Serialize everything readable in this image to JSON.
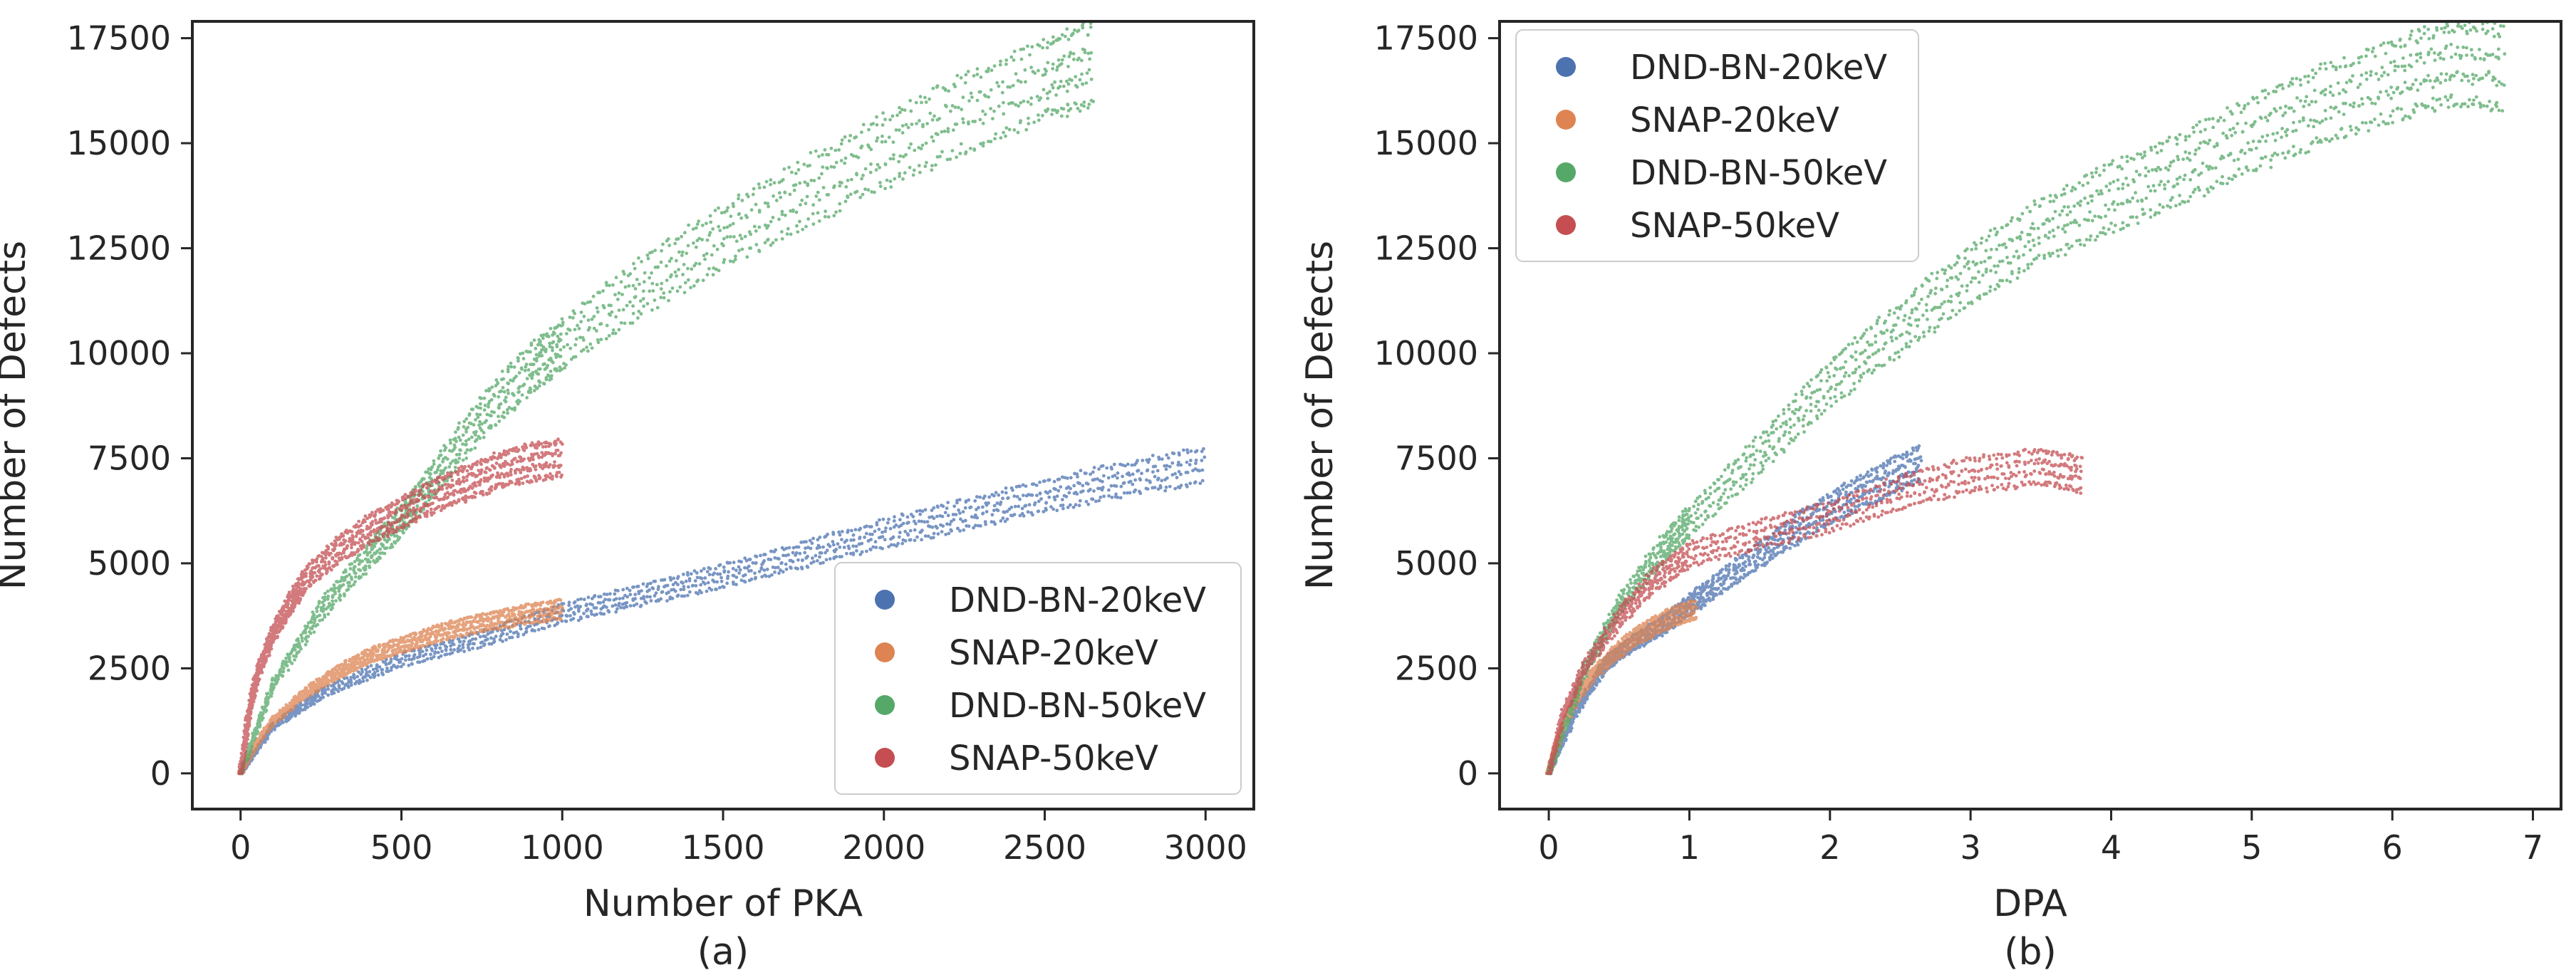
{
  "chart_data": [
    {
      "type": "scatter",
      "panel_label": "(a)",
      "xlabel": "Number of PKA",
      "ylabel": "Number of Defects",
      "xlim": [
        -150,
        3150
      ],
      "ylim": [
        -850,
        17900
      ],
      "xticks": [
        0,
        500,
        1000,
        1500,
        2000,
        2500,
        3000
      ],
      "yticks": [
        0,
        2500,
        5000,
        7500,
        10000,
        12500,
        15000,
        17500
      ],
      "legend_position": "lower-right",
      "legend": [
        "DND-BN-20keV",
        "SNAP-20keV",
        "DND-BN-50keV",
        "SNAP-50keV"
      ],
      "series": [
        {
          "name": "DND-BN-20keV",
          "color": "#4c72b0",
          "runs": 4,
          "points": [
            [
              0,
              0
            ],
            [
              100,
              1100
            ],
            [
              250,
              1900
            ],
            [
              500,
              2700
            ],
            [
              750,
              3200
            ],
            [
              1000,
              3800
            ],
            [
              1250,
              4250
            ],
            [
              1500,
              4700
            ],
            [
              1750,
              5200
            ],
            [
              2000,
              5700
            ],
            [
              2250,
              6150
            ],
            [
              2500,
              6600
            ],
            [
              2750,
              7000
            ],
            [
              3000,
              7350
            ]
          ]
        },
        {
          "name": "SNAP-20keV",
          "color": "#dd8452",
          "runs": 4,
          "points": [
            [
              0,
              0
            ],
            [
              50,
              700
            ],
            [
              100,
              1250
            ],
            [
              200,
              1900
            ],
            [
              300,
              2400
            ],
            [
              400,
              2800
            ],
            [
              500,
              3050
            ],
            [
              600,
              3300
            ],
            [
              700,
              3500
            ],
            [
              800,
              3650
            ],
            [
              900,
              3800
            ],
            [
              1000,
              3900
            ]
          ]
        },
        {
          "name": "DND-BN-50keV",
          "color": "#55a868",
          "runs": 4,
          "points": [
            [
              0,
              0
            ],
            [
              100,
              2100
            ],
            [
              250,
              3900
            ],
            [
              400,
              5200
            ],
            [
              500,
              6000
            ],
            [
              600,
              7000
            ],
            [
              750,
              8500
            ],
            [
              900,
              9600
            ],
            [
              1000,
              10200
            ],
            [
              1250,
              11600
            ],
            [
              1500,
              12800
            ],
            [
              1750,
              13800
            ],
            [
              2000,
              14800
            ],
            [
              2250,
              15700
            ],
            [
              2500,
              16500
            ],
            [
              2650,
              16900
            ]
          ]
        },
        {
          "name": "SNAP-50keV",
          "color": "#c44e52",
          "runs": 4,
          "points": [
            [
              0,
              0
            ],
            [
              25,
              1400
            ],
            [
              50,
              2300
            ],
            [
              100,
              3300
            ],
            [
              150,
              4000
            ],
            [
              200,
              4600
            ],
            [
              300,
              5300
            ],
            [
              400,
              5800
            ],
            [
              500,
              6200
            ],
            [
              600,
              6600
            ],
            [
              700,
              6900
            ],
            [
              800,
              7200
            ],
            [
              900,
              7400
            ],
            [
              1000,
              7500
            ]
          ]
        }
      ]
    },
    {
      "type": "scatter",
      "panel_label": "(b)",
      "xlabel": "DPA",
      "ylabel": "Number of Defects",
      "xlim": [
        -0.35,
        7.2
      ],
      "ylim": [
        -850,
        17900
      ],
      "xticks": [
        0,
        1,
        2,
        3,
        4,
        5,
        6,
        7
      ],
      "yticks": [
        0,
        2500,
        5000,
        7500,
        10000,
        12500,
        15000,
        17500
      ],
      "legend_position": "upper-left",
      "legend": [
        "DND-BN-20keV",
        "SNAP-20keV",
        "DND-BN-50keV",
        "SNAP-50keV"
      ],
      "series": [
        {
          "name": "DND-BN-20keV",
          "color": "#4c72b0",
          "runs": 4,
          "points": [
            [
              0,
              0
            ],
            [
              0.2,
              1500
            ],
            [
              0.4,
              2600
            ],
            [
              0.6,
              3100
            ],
            [
              0.8,
              3500
            ],
            [
              1.0,
              4000
            ],
            [
              1.2,
              4500
            ],
            [
              1.5,
              5200
            ],
            [
              1.8,
              5900
            ],
            [
              2.1,
              6500
            ],
            [
              2.4,
              7000
            ],
            [
              2.65,
              7400
            ]
          ]
        },
        {
          "name": "SNAP-20keV",
          "color": "#dd8452",
          "runs": 4,
          "points": [
            [
              0,
              0
            ],
            [
              0.05,
              600
            ],
            [
              0.1,
              1100
            ],
            [
              0.2,
              1800
            ],
            [
              0.3,
              2300
            ],
            [
              0.45,
              2800
            ],
            [
              0.6,
              3200
            ],
            [
              0.75,
              3500
            ],
            [
              0.9,
              3750
            ],
            [
              1.05,
              3900
            ]
          ]
        },
        {
          "name": "DND-BN-50keV",
          "color": "#55a868",
          "runs": 4,
          "points": [
            [
              0,
              0
            ],
            [
              0.25,
              2400
            ],
            [
              0.5,
              4000
            ],
            [
              0.8,
              5300
            ],
            [
              1.0,
              6000
            ],
            [
              1.5,
              7600
            ],
            [
              2.0,
              9300
            ],
            [
              2.5,
              10600
            ],
            [
              3.0,
              11900
            ],
            [
              3.5,
              12900
            ],
            [
              4.0,
              13700
            ],
            [
              4.5,
              14400
            ],
            [
              5.0,
              15200
            ],
            [
              5.5,
              15900
            ],
            [
              6.0,
              16500
            ],
            [
              6.4,
              16900
            ],
            [
              6.8,
              16800
            ]
          ]
        },
        {
          "name": "SNAP-50keV",
          "color": "#c44e52",
          "runs": 4,
          "points": [
            [
              0,
              0
            ],
            [
              0.1,
              1400
            ],
            [
              0.25,
              2500
            ],
            [
              0.5,
              3700
            ],
            [
              0.75,
              4600
            ],
            [
              1.0,
              5200
            ],
            [
              1.5,
              5700
            ],
            [
              2.0,
              6100
            ],
            [
              2.5,
              6700
            ],
            [
              3.0,
              7100
            ],
            [
              3.5,
              7300
            ],
            [
              3.8,
              7100
            ]
          ]
        }
      ]
    }
  ]
}
